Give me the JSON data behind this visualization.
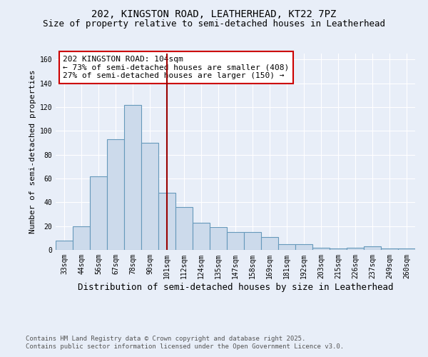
{
  "title1": "202, KINGSTON ROAD, LEATHERHEAD, KT22 7PZ",
  "title2": "Size of property relative to semi-detached houses in Leatherhead",
  "xlabel": "Distribution of semi-detached houses by size in Leatherhead",
  "ylabel": "Number of semi-detached properties",
  "categories": [
    "33sqm",
    "44sqm",
    "56sqm",
    "67sqm",
    "78sqm",
    "90sqm",
    "101sqm",
    "112sqm",
    "124sqm",
    "135sqm",
    "147sqm",
    "158sqm",
    "169sqm",
    "181sqm",
    "192sqm",
    "203sqm",
    "215sqm",
    "226sqm",
    "237sqm",
    "249sqm",
    "260sqm"
  ],
  "values": [
    8,
    20,
    62,
    93,
    122,
    90,
    48,
    36,
    23,
    19,
    15,
    15,
    11,
    5,
    5,
    2,
    1,
    2,
    3,
    1,
    1
  ],
  "bar_color": "#ccdaeb",
  "bar_edge_color": "#6699bb",
  "line_x_index": 6,
  "line_color": "#990000",
  "annotation_text": "202 KINGSTON ROAD: 104sqm\n← 73% of semi-detached houses are smaller (408)\n27% of semi-detached houses are larger (150) →",
  "annotation_box_color": "#ffffff",
  "annotation_box_edge_color": "#cc0000",
  "background_color": "#e8eef8",
  "plot_bg_color": "#e8eef8",
  "footer1": "Contains HM Land Registry data © Crown copyright and database right 2025.",
  "footer2": "Contains public sector information licensed under the Open Government Licence v3.0.",
  "ylim": [
    0,
    165
  ],
  "yticks": [
    0,
    20,
    40,
    60,
    80,
    100,
    120,
    140,
    160
  ],
  "title1_fontsize": 10,
  "title2_fontsize": 9,
  "xlabel_fontsize": 9,
  "ylabel_fontsize": 8,
  "tick_fontsize": 7,
  "annotation_fontsize": 8,
  "footer_fontsize": 6.5
}
